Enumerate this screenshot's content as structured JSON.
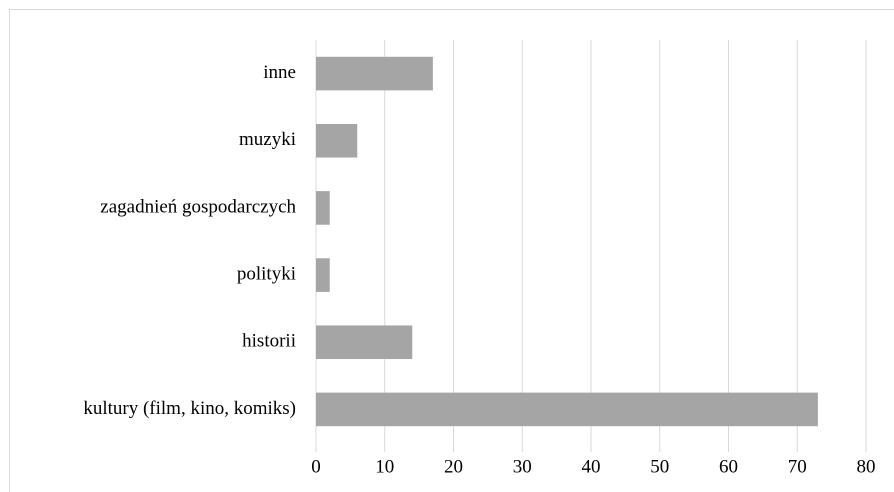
{
  "chart_data": {
    "type": "bar",
    "orientation": "horizontal",
    "categories": [
      "inne",
      "muzyki",
      "zagadnień gospodarczych",
      "polityki",
      "historii",
      "kultury (film, kino, komiks)"
    ],
    "values": [
      17,
      6,
      2,
      2,
      14,
      73
    ],
    "color": "#a5a5a5",
    "xlim": [
      0,
      80
    ],
    "xticks": [
      0,
      10,
      20,
      30,
      40,
      50,
      60,
      70,
      80
    ],
    "grid": true
  }
}
